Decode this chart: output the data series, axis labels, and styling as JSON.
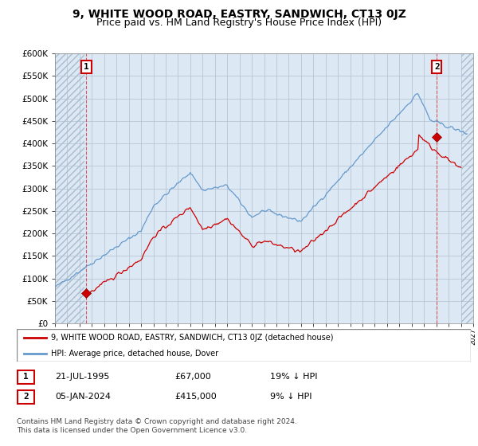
{
  "title": "9, WHITE WOOD ROAD, EASTRY, SANDWICH, CT13 0JZ",
  "subtitle": "Price paid vs. HM Land Registry's House Price Index (HPI)",
  "ylim": [
    0,
    600000
  ],
  "yticks": [
    0,
    50000,
    100000,
    150000,
    200000,
    250000,
    300000,
    350000,
    400000,
    450000,
    500000,
    550000,
    600000
  ],
  "ytick_labels": [
    "£0",
    "£50K",
    "£100K",
    "£150K",
    "£200K",
    "£250K",
    "£300K",
    "£350K",
    "£400K",
    "£450K",
    "£500K",
    "£550K",
    "£600K"
  ],
  "background_color": "#dce9f5",
  "hatch_bg_color": "#c8d8ec",
  "grid_color": "#b0bfd0",
  "red_line_color": "#cc0000",
  "blue_line_color": "#6699cc",
  "marker_color": "#cc0000",
  "sale1_x": 1995.55,
  "sale1_y": 67000,
  "sale1_label": "1",
  "sale2_x": 2024.04,
  "sale2_y": 415000,
  "sale2_label": "2",
  "legend_entry1": "9, WHITE WOOD ROAD, EASTRY, SANDWICH, CT13 0JZ (detached house)",
  "legend_entry2": "HPI: Average price, detached house, Dover",
  "table_row1": [
    "1",
    "21-JUL-1995",
    "£67,000",
    "19% ↓ HPI"
  ],
  "table_row2": [
    "2",
    "05-JAN-2024",
    "£415,000",
    "9% ↓ HPI"
  ],
  "footer": "Contains HM Land Registry data © Crown copyright and database right 2024.\nThis data is licensed under the Open Government Licence v3.0.",
  "xmin": 1993,
  "xmax": 2027,
  "title_fontsize": 10,
  "subtitle_fontsize": 9
}
